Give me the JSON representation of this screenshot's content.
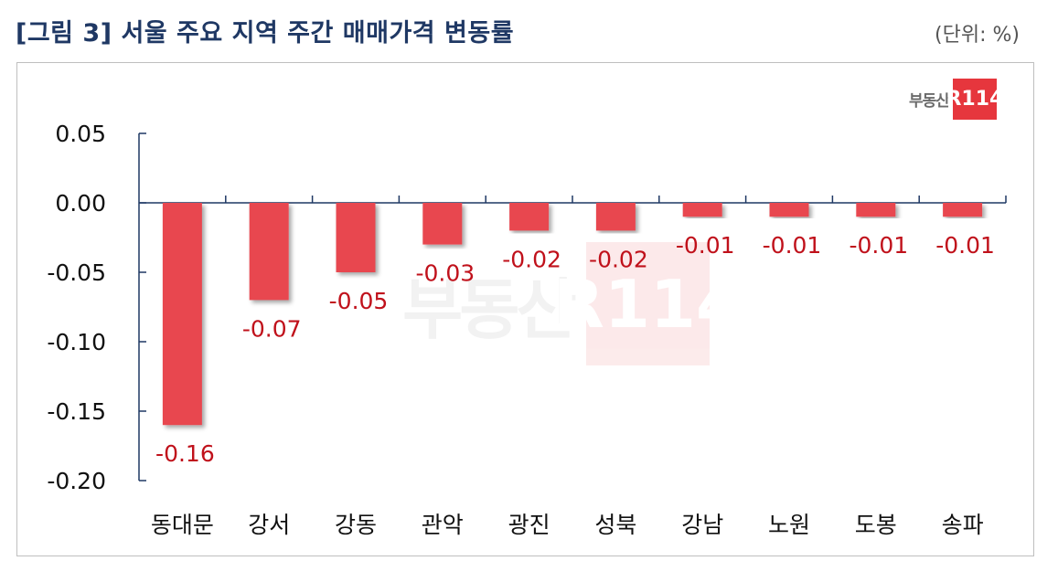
{
  "title": "[그림 3] 서울 주요 지역 주간 매매가격 변동률",
  "unit_label": "(단위: %)",
  "logo": {
    "text": "부동산",
    "badge": "R114"
  },
  "colors": {
    "bar": "#e8474f",
    "label": "#c0111b",
    "axis": "#1f3864",
    "title": "#1f3864"
  },
  "chart_data": {
    "type": "bar",
    "title": "[그림 3] 서울 주요 지역 주간 매매가격 변동률",
    "xlabel": "",
    "ylabel": "",
    "categories": [
      "동대문",
      "강서",
      "강동",
      "관악",
      "광진",
      "성북",
      "강남",
      "노원",
      "도봉",
      "송파"
    ],
    "values": [
      -0.16,
      -0.07,
      -0.05,
      -0.03,
      -0.02,
      -0.02,
      -0.01,
      -0.01,
      -0.01,
      -0.01
    ],
    "value_labels": [
      "-0.16",
      "-0.07",
      "-0.05",
      "-0.03",
      "-0.02",
      "-0.02",
      "-0.01",
      "-0.01",
      "-0.01",
      "-0.01"
    ],
    "ylim": [
      -0.2,
      0.05
    ],
    "yticks": [
      0.05,
      0.0,
      -0.05,
      -0.1,
      -0.15,
      -0.2
    ],
    "ytick_labels": [
      "0.05",
      "0.00",
      "-0.05",
      "-0.10",
      "-0.15",
      "-0.20"
    ],
    "grid": false,
    "legend": "none"
  }
}
